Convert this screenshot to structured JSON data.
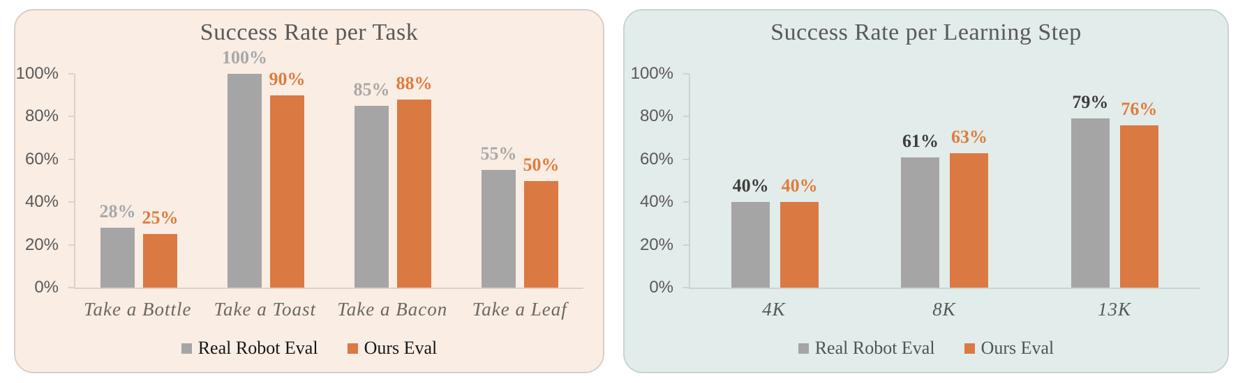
{
  "page": {
    "background": "#ffffff"
  },
  "chart_data": [
    {
      "type": "bar",
      "title": "Success Rate per Task",
      "categories": [
        "Take a Bottle",
        "Take a Toast",
        "Take a Bacon",
        "Take a Leaf"
      ],
      "series": [
        {
          "name": "Real Robot Eval",
          "values": [
            28,
            100,
            85,
            55
          ],
          "color": "#A5A5A5",
          "label_color": "#A8A8A8"
        },
        {
          "name": "Ours Eval",
          "values": [
            25,
            90,
            88,
            50
          ],
          "color": "#DB7943",
          "label_color": "#DE7C3D"
        }
      ],
      "value_suffix": "%",
      "ylim": [
        0,
        100
      ],
      "yticks": [
        "0%",
        "20%",
        "40%",
        "60%",
        "80%",
        "100%"
      ],
      "legend_position": "bottom",
      "grid": false,
      "styles": {
        "panel_bg": "#F9EDE4",
        "panel_border": "#D7CFC8",
        "title_color": "#595959",
        "tick_color": "#595959",
        "axis_color": "#D9D2CB",
        "category_color": "#6A6763",
        "legend_text_color": "#161616"
      }
    },
    {
      "type": "bar",
      "title": "Success Rate per Learning Step",
      "categories": [
        "4K",
        "8K",
        "13K"
      ],
      "series": [
        {
          "name": "Real Robot Eval",
          "values": [
            40,
            61,
            79
          ],
          "color": "#A5A5A5",
          "label_color": "#3D3D3D"
        },
        {
          "name": "Ours Eval",
          "values": [
            40,
            63,
            76
          ],
          "color": "#DB7943",
          "label_color": "#DE7C3D"
        }
      ],
      "value_suffix": "%",
      "ylim": [
        0,
        100
      ],
      "yticks": [
        "0%",
        "20%",
        "40%",
        "60%",
        "80%",
        "100%"
      ],
      "legend_position": "bottom",
      "grid": false,
      "styles": {
        "panel_bg": "#E2ECEA",
        "panel_border": "#C7D4D2",
        "title_color": "#595959",
        "tick_color": "#595959",
        "axis_color": "#C9D4D2",
        "category_color": "#54585B",
        "legend_text_color": "#4D5357"
      }
    }
  ]
}
